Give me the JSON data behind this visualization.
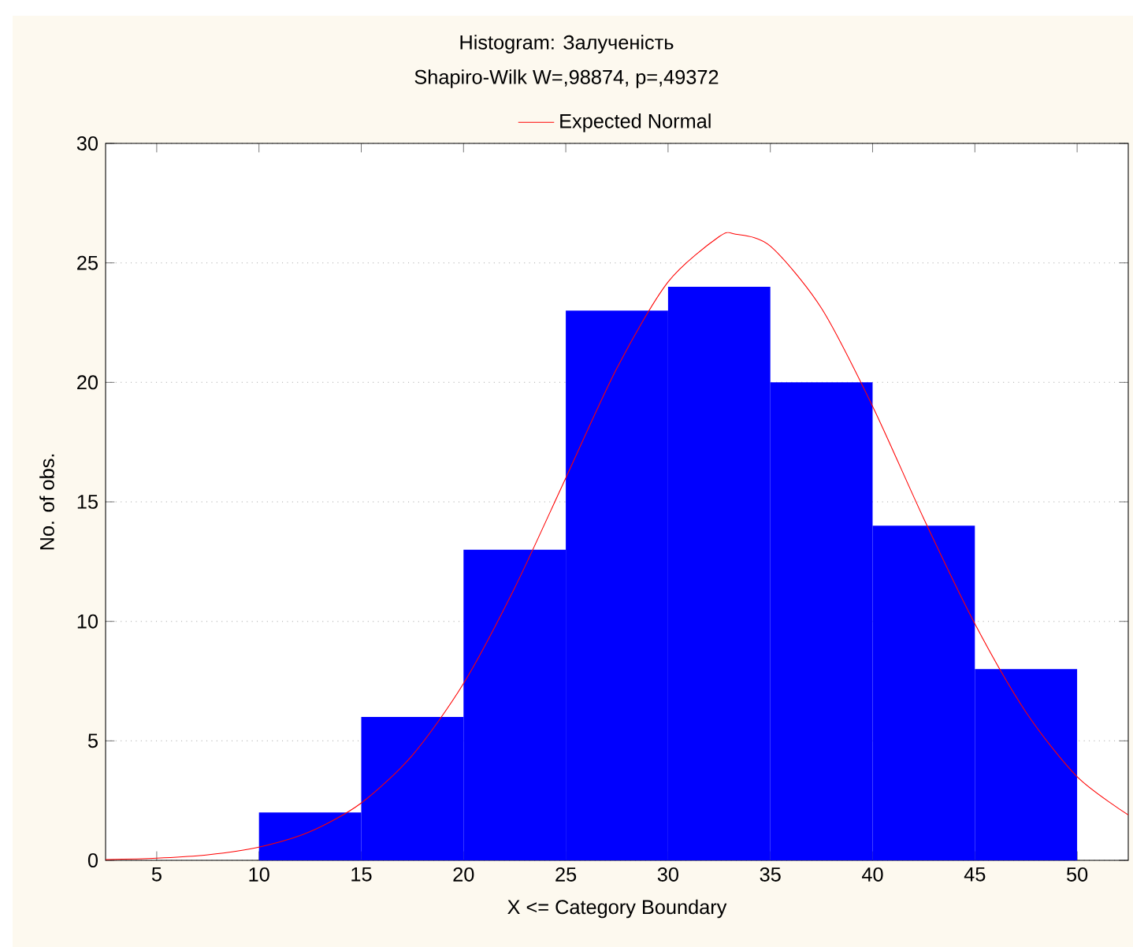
{
  "chart_data": {
    "type": "histogram",
    "title": "Histogram: Залученість",
    "subtitle": "Shapiro-Wilk W=,98874, p=,49372",
    "xlabel": "X <= Category Boundary",
    "ylabel": "No. of obs.",
    "bins": [
      10,
      15,
      20,
      25,
      30,
      35,
      40,
      45,
      50
    ],
    "values": [
      2,
      6,
      13,
      23,
      24,
      20,
      14,
      8
    ],
    "color": "#0000ff",
    "series": [
      {
        "type": "line",
        "name": "Expected Normal",
        "color": "#ff0000",
        "x": [
          2.5,
          5,
          7.5,
          10,
          12.5,
          15,
          17.5,
          20,
          22.5,
          25,
          27.5,
          30,
          32.5,
          33.3,
          35,
          37.5,
          40,
          42.5,
          45,
          47.5,
          50,
          52.5
        ],
        "values": [
          0.03,
          0.09,
          0.23,
          0.55,
          1.2,
          2.4,
          4.4,
          7.4,
          11.4,
          16.0,
          20.6,
          24.2,
          26.1,
          26.2,
          25.7,
          23.1,
          19.0,
          14.3,
          9.9,
          6.2,
          3.5,
          1.9
        ]
      }
    ],
    "xlim": [
      2.5,
      52.5
    ],
    "ylim": [
      0,
      30
    ],
    "xticks": [
      5,
      10,
      15,
      20,
      25,
      30,
      35,
      40,
      45,
      50
    ],
    "yticks": [
      0,
      5,
      10,
      15,
      20,
      25,
      30
    ],
    "grid": "y",
    "legend": "top",
    "marker": "none",
    "line_style": "solid"
  }
}
